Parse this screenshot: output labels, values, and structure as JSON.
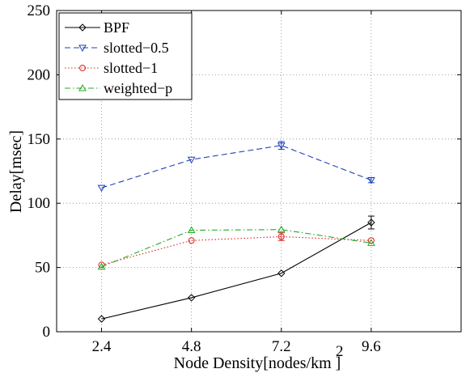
{
  "chart_data": {
    "type": "line",
    "title": "",
    "xlabel": "Node Density[nodes/km ]",
    "ylabel": "Delay[msec]",
    "x_tick_labels": [
      "2.4",
      "4.8",
      "7.2",
      "9.6"
    ],
    "y_tick_labels": [
      "0",
      "50",
      "100",
      "150",
      "200",
      "250"
    ],
    "xlim": [
      1.2,
      12
    ],
    "ylim": [
      0,
      250
    ],
    "grid": true,
    "legend_position": "top-left",
    "x": [
      2.4,
      4.8,
      7.2,
      9.6
    ],
    "series": [
      {
        "name": "BPF",
        "values": [
          10,
          26.5,
          45.5,
          85
        ],
        "error": [
          0,
          0,
          0,
          5
        ],
        "color": "#000000",
        "line_style": "solid",
        "marker": "diamond"
      },
      {
        "name": "slotted−0.5",
        "values": [
          112,
          134,
          145,
          118
        ],
        "error": [
          0,
          0,
          3,
          2
        ],
        "color": "#1f3fbf",
        "line_style": "dashed",
        "marker": "triangle-down"
      },
      {
        "name": "slotted−1",
        "values": [
          52,
          71,
          74,
          71
        ],
        "error": [
          0,
          0,
          3,
          0
        ],
        "color": "#e02020",
        "line_style": "dotted",
        "marker": "circle"
      },
      {
        "name": "weighted−p",
        "values": [
          50.5,
          79,
          79.5,
          69
        ],
        "error": [
          0,
          0,
          0,
          0
        ],
        "color": "#22aa22",
        "line_style": "dash-dot",
        "marker": "triangle-up"
      }
    ]
  }
}
